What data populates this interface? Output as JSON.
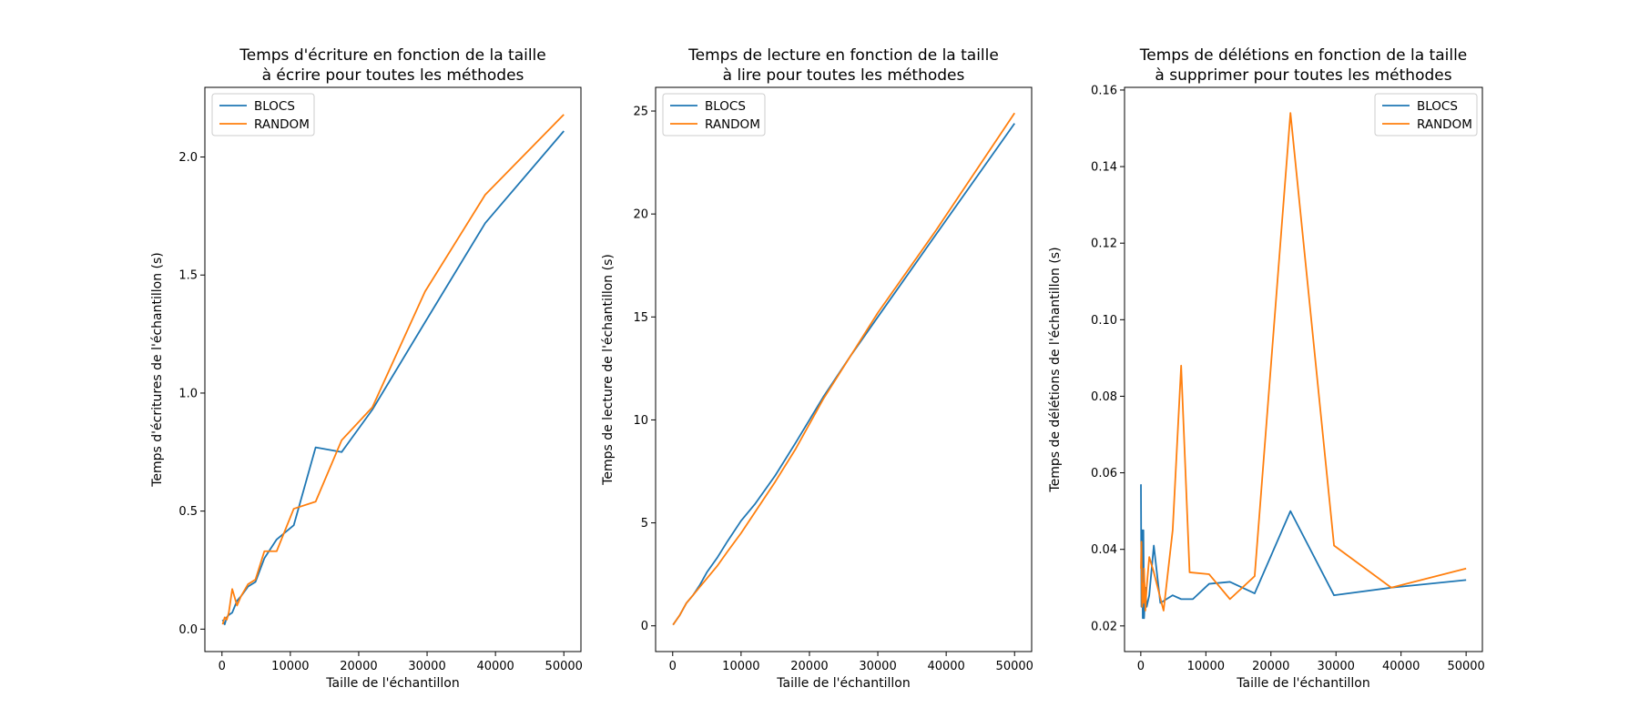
{
  "chart_data": [
    {
      "type": "line",
      "title": [
        "Temps d'écriture en fonction de la taille",
        "à écrire pour toutes les méthodes"
      ],
      "xlabel": "Taille de l'échantillon",
      "ylabel": "Temps d'écritures de l'échantillon (s)",
      "xlim": [
        -2500,
        52500
      ],
      "ylim": [
        -0.095,
        2.295
      ],
      "xticks": [
        0,
        10000,
        20000,
        30000,
        40000,
        50000
      ],
      "yticks": [
        0.0,
        0.5,
        1.0,
        1.5,
        2.0
      ],
      "ytick_labels": [
        "0.0",
        "0.5",
        "1.0",
        "1.5",
        "2.0"
      ],
      "legend": "top-left",
      "grid": false,
      "series": [
        {
          "name": "BLOCS",
          "color": "#1f77b4",
          "x": [
            100,
            400,
            700,
            1000,
            1500,
            2200,
            2800,
            3800,
            4900,
            6200,
            8000,
            10500,
            13700,
            17500,
            22000,
            29700,
            38500,
            50000
          ],
          "y": [
            0.04,
            0.02,
            0.05,
            0.06,
            0.07,
            0.12,
            0.14,
            0.18,
            0.2,
            0.3,
            0.38,
            0.44,
            0.77,
            0.75,
            0.93,
            1.3,
            1.72,
            2.11
          ]
        },
        {
          "name": "RANDOM",
          "color": "#ff7f0e",
          "x": [
            100,
            400,
            700,
            1000,
            1500,
            2200,
            2800,
            3800,
            4900,
            6200,
            8000,
            10500,
            13700,
            17500,
            22000,
            29700,
            38500,
            50000
          ],
          "y": [
            0.02,
            0.05,
            0.04,
            0.07,
            0.17,
            0.1,
            0.14,
            0.19,
            0.21,
            0.33,
            0.33,
            0.51,
            0.54,
            0.8,
            0.94,
            1.43,
            1.84,
            2.18
          ]
        }
      ]
    },
    {
      "type": "line",
      "title": [
        "Temps de lecture en fonction de la taille",
        "à lire pour toutes les méthodes"
      ],
      "xlabel": "Taille de l'échantillon",
      "ylabel": "Temps de lecture de l'échantillon (s)",
      "xlim": [
        -2500,
        52500
      ],
      "ylim": [
        -1.25,
        26.15
      ],
      "xticks": [
        0,
        10000,
        20000,
        30000,
        40000,
        50000
      ],
      "yticks": [
        0,
        5,
        10,
        15,
        20,
        25
      ],
      "ytick_labels": [
        "0",
        "5",
        "10",
        "15",
        "20",
        "25"
      ],
      "legend": "top-left",
      "grid": false,
      "series": [
        {
          "name": "BLOCS",
          "color": "#1f77b4",
          "x": [
            50,
            1000,
            2000,
            3000,
            4000,
            5000,
            6500,
            8000,
            10000,
            12000,
            15000,
            18000,
            22000,
            26000,
            30000,
            38500,
            50000
          ],
          "y": [
            0.05,
            0.5,
            1.1,
            1.5,
            2.0,
            2.6,
            3.3,
            4.1,
            5.1,
            5.9,
            7.3,
            8.9,
            11.1,
            13.1,
            15.0,
            19.0,
            24.4
          ]
        },
        {
          "name": "RANDOM",
          "color": "#ff7f0e",
          "x": [
            50,
            1000,
            2000,
            3000,
            4000,
            5000,
            6500,
            8000,
            10000,
            12000,
            15000,
            18000,
            22000,
            26000,
            30000,
            38500,
            50000
          ],
          "y": [
            0.05,
            0.5,
            1.1,
            1.5,
            1.9,
            2.3,
            2.9,
            3.6,
            4.5,
            5.5,
            7.0,
            8.6,
            11.0,
            13.1,
            15.2,
            19.2,
            24.9
          ]
        }
      ]
    },
    {
      "type": "line",
      "title": [
        "Temps de délétions en fonction de la taille",
        "à supprimer pour toutes les méthodes"
      ],
      "xlabel": "Taille de l'échantillon",
      "ylabel": "Temps de délétions de l'échantillon (s)",
      "xlim": [
        -2500,
        52500
      ],
      "ylim": [
        0.0133,
        0.1607
      ],
      "xticks": [
        0,
        10000,
        20000,
        30000,
        40000,
        50000
      ],
      "yticks": [
        0.02,
        0.04,
        0.06,
        0.08,
        0.1,
        0.12,
        0.14,
        0.16
      ],
      "ytick_labels": [
        "0.02",
        "0.04",
        "0.06",
        "0.08",
        "0.10",
        "0.12",
        "0.14",
        "0.16"
      ],
      "legend": "top-right",
      "grid": false,
      "series": [
        {
          "name": "BLOCS",
          "color": "#1f77b4",
          "x": [
            20,
            100,
            200,
            300,
            400,
            500,
            700,
            900,
            1300,
            2000,
            3000,
            4900,
            6200,
            8000,
            10500,
            13700,
            17500,
            23000,
            29700,
            38500,
            50000
          ],
          "y": [
            0.057,
            0.025,
            0.045,
            0.022,
            0.045,
            0.022,
            0.03,
            0.025,
            0.028,
            0.041,
            0.026,
            0.028,
            0.027,
            0.027,
            0.031,
            0.0315,
            0.0285,
            0.05,
            0.028,
            0.03,
            0.032
          ]
        },
        {
          "name": "RANDOM",
          "color": "#ff7f0e",
          "x": [
            20,
            100,
            200,
            300,
            400,
            500,
            700,
            900,
            1300,
            2000,
            3500,
            4900,
            6200,
            7500,
            10500,
            13700,
            17500,
            23000,
            29700,
            38500,
            50000
          ],
          "y": [
            0.035,
            0.042,
            0.025,
            0.031,
            0.026,
            0.035,
            0.024,
            0.03,
            0.038,
            0.034,
            0.024,
            0.045,
            0.088,
            0.034,
            0.0335,
            0.027,
            0.033,
            0.154,
            0.041,
            0.03,
            0.035
          ]
        }
      ]
    }
  ]
}
